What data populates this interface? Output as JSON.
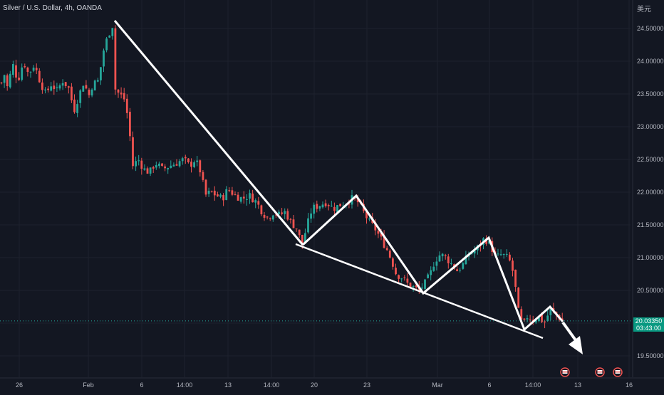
{
  "header": {
    "title": "Silver / U.S. Dollar, 4h, OANDA",
    "currency": "美元"
  },
  "last_price": {
    "value": "20.03350",
    "countdown": "03:43:00",
    "color": "#089981"
  },
  "colors": {
    "background": "#131722",
    "up": "#26a69a",
    "down": "#ef5350",
    "grid": "#1e222d",
    "axis_text": "#b2b5be",
    "trendline": "#ffffff"
  },
  "events": {
    "count": 3,
    "icon": "economic-event-flag-icon"
  },
  "chart_data": {
    "type": "candlestick",
    "title": "Silver / U.S. Dollar, 4h, OANDA",
    "ylabel": "美元",
    "ylim": [
      19.3,
      24.9
    ],
    "y_ticks": [
      "24.50000",
      "24.00000",
      "23.50000",
      "23.00000",
      "22.50000",
      "22.00000",
      "21.50000",
      "21.00000",
      "20.50000",
      "20.00000",
      "19.50000"
    ],
    "x_ticks": [
      "26",
      "Feb",
      "6",
      "14:00",
      "13",
      "14:00",
      "20",
      "23",
      "Mar",
      "6",
      "14:00",
      "13",
      "16"
    ],
    "grid": true,
    "last_price": 20.0335,
    "candle_path": [
      [
        0,
        23.55
      ],
      [
        5,
        23.85
      ],
      [
        10,
        23.6
      ],
      [
        18,
        23.95
      ],
      [
        25,
        23.7
      ],
      [
        33,
        24.0
      ],
      [
        40,
        23.8
      ],
      [
        48,
        23.95
      ],
      [
        56,
        23.7
      ],
      [
        64,
        23.5
      ],
      [
        72,
        23.65
      ],
      [
        80,
        23.55
      ],
      [
        88,
        23.7
      ],
      [
        96,
        23.6
      ],
      [
        104,
        23.25
      ],
      [
        110,
        23.45
      ],
      [
        118,
        23.7
      ],
      [
        124,
        23.45
      ],
      [
        130,
        23.65
      ],
      [
        138,
        23.7
      ],
      [
        146,
        24.2
      ],
      [
        152,
        24.4
      ],
      [
        158,
        24.55
      ],
      [
        162,
        23.55
      ],
      [
        168,
        23.5
      ],
      [
        176,
        23.4
      ],
      [
        182,
        22.9
      ],
      [
        186,
        22.4
      ],
      [
        194,
        22.5
      ],
      [
        202,
        22.35
      ],
      [
        210,
        22.3
      ],
      [
        218,
        22.45
      ],
      [
        228,
        22.35
      ],
      [
        238,
        22.4
      ],
      [
        248,
        22.45
      ],
      [
        258,
        22.5
      ],
      [
        266,
        22.4
      ],
      [
        274,
        22.5
      ],
      [
        282,
        22.3
      ],
      [
        288,
        21.95
      ],
      [
        296,
        22.0
      ],
      [
        304,
        21.95
      ],
      [
        312,
        21.9
      ],
      [
        320,
        22.05
      ],
      [
        330,
        21.95
      ],
      [
        340,
        21.9
      ],
      [
        350,
        21.95
      ],
      [
        360,
        21.85
      ],
      [
        368,
        21.7
      ],
      [
        376,
        21.6
      ],
      [
        384,
        21.7
      ],
      [
        392,
        21.65
      ],
      [
        400,
        21.7
      ],
      [
        408,
        21.55
      ],
      [
        416,
        21.45
      ],
      [
        424,
        21.2
      ],
      [
        430,
        21.45
      ],
      [
        438,
        21.75
      ],
      [
        448,
        21.8
      ],
      [
        458,
        21.85
      ],
      [
        468,
        21.75
      ],
      [
        476,
        21.8
      ],
      [
        486,
        21.85
      ],
      [
        494,
        21.9
      ],
      [
        502,
        21.85
      ],
      [
        510,
        21.7
      ],
      [
        518,
        21.55
      ],
      [
        526,
        21.45
      ],
      [
        534,
        21.3
      ],
      [
        542,
        21.15
      ],
      [
        550,
        20.95
      ],
      [
        556,
        20.75
      ],
      [
        564,
        20.7
      ],
      [
        572,
        20.6
      ],
      [
        580,
        20.55
      ],
      [
        588,
        20.5
      ],
      [
        596,
        20.6
      ],
      [
        604,
        20.75
      ],
      [
        610,
        20.95
      ],
      [
        618,
        21.05
      ],
      [
        626,
        21.0
      ],
      [
        634,
        20.9
      ],
      [
        642,
        20.8
      ],
      [
        650,
        20.9
      ],
      [
        658,
        21.05
      ],
      [
        666,
        21.1
      ],
      [
        674,
        21.2
      ],
      [
        680,
        21.3
      ],
      [
        688,
        21.2
      ],
      [
        696,
        21.0
      ],
      [
        704,
        21.05
      ],
      [
        712,
        21.0
      ],
      [
        718,
        20.9
      ],
      [
        724,
        20.5
      ],
      [
        728,
        20.15
      ],
      [
        734,
        19.95
      ],
      [
        740,
        20.1
      ],
      [
        748,
        20.05
      ],
      [
        756,
        20.1
      ],
      [
        764,
        20.0
      ],
      [
        772,
        20.2
      ],
      [
        778,
        20.15
      ],
      [
        784,
        20.1
      ],
      [
        790,
        20.03
      ]
    ]
  }
}
